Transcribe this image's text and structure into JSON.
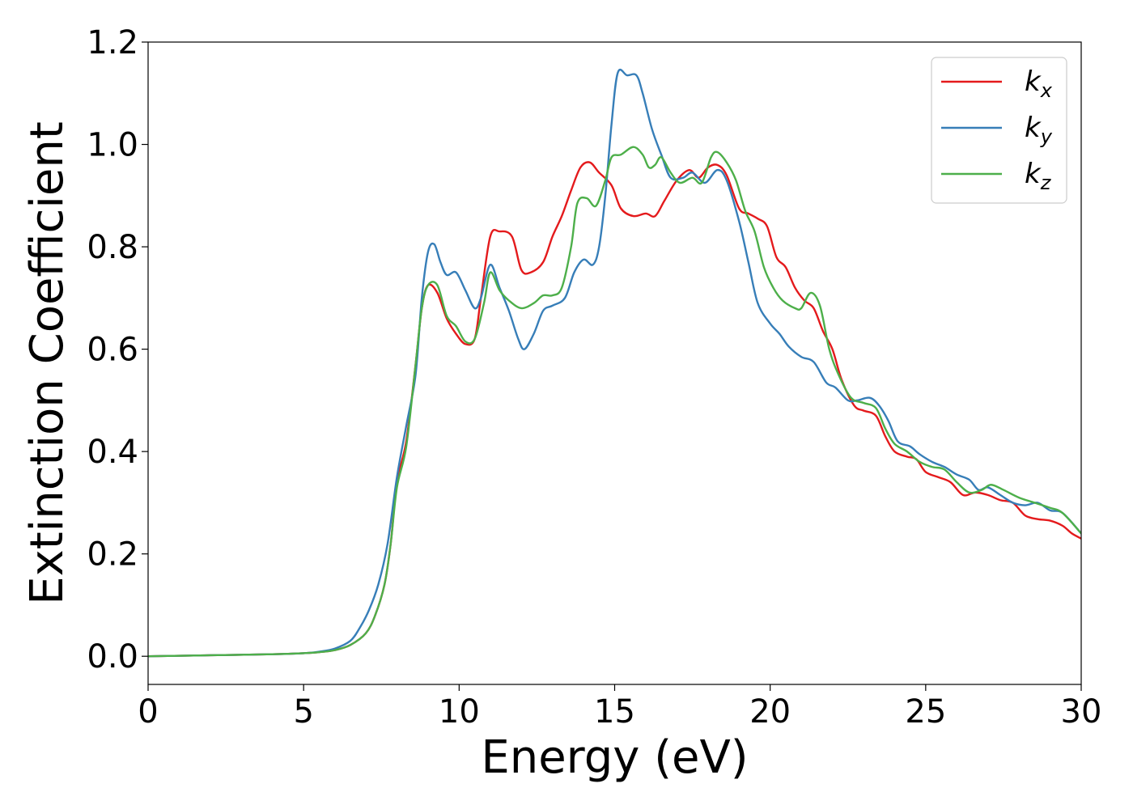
{
  "chart_data": {
    "type": "line",
    "xlabel": "Energy (eV)",
    "ylabel": "Extinction Coefficient",
    "xlim": [
      0,
      30
    ],
    "ylim": [
      -0.055,
      1.2
    ],
    "xticks": [
      0,
      5,
      10,
      15,
      20,
      25,
      30
    ],
    "xtick_labels": [
      "0",
      "5",
      "10",
      "15",
      "20",
      "25",
      "30"
    ],
    "yticks": [
      0.0,
      0.2,
      0.4,
      0.6,
      0.8,
      1.0,
      1.2
    ],
    "ytick_labels": [
      "0.0",
      "0.2",
      "0.4",
      "0.6",
      "0.8",
      "1.0",
      "1.2"
    ],
    "grid": false,
    "legend_position": "top-right",
    "series": [
      {
        "name": "k",
        "subscript": "x",
        "color": "#e41a1c",
        "points": [
          [
            0,
            0
          ],
          [
            2,
            0.002
          ],
          [
            4,
            0.004
          ],
          [
            5,
            0.006
          ],
          [
            5.5,
            0.008
          ],
          [
            6,
            0.012
          ],
          [
            6.5,
            0.022
          ],
          [
            7,
            0.045
          ],
          [
            7.3,
            0.08
          ],
          [
            7.6,
            0.14
          ],
          [
            7.8,
            0.22
          ],
          [
            8,
            0.34
          ],
          [
            8.3,
            0.42
          ],
          [
            8.6,
            0.57
          ],
          [
            8.8,
            0.68
          ],
          [
            9,
            0.725
          ],
          [
            9.3,
            0.71
          ],
          [
            9.6,
            0.66
          ],
          [
            9.9,
            0.63
          ],
          [
            10.2,
            0.61
          ],
          [
            10.5,
            0.62
          ],
          [
            10.7,
            0.7
          ],
          [
            11,
            0.82
          ],
          [
            11.3,
            0.83
          ],
          [
            11.7,
            0.82
          ],
          [
            12,
            0.755
          ],
          [
            12.3,
            0.75
          ],
          [
            12.7,
            0.77
          ],
          [
            13,
            0.82
          ],
          [
            13.3,
            0.86
          ],
          [
            13.6,
            0.91
          ],
          [
            13.9,
            0.955
          ],
          [
            14.2,
            0.965
          ],
          [
            14.5,
            0.945
          ],
          [
            14.9,
            0.92
          ],
          [
            15.2,
            0.875
          ],
          [
            15.6,
            0.86
          ],
          [
            16,
            0.865
          ],
          [
            16.3,
            0.86
          ],
          [
            16.6,
            0.89
          ],
          [
            17,
            0.93
          ],
          [
            17.4,
            0.95
          ],
          [
            17.7,
            0.935
          ],
          [
            18,
            0.955
          ],
          [
            18.3,
            0.96
          ],
          [
            18.6,
            0.94
          ],
          [
            19,
            0.875
          ],
          [
            19.3,
            0.865
          ],
          [
            19.6,
            0.855
          ],
          [
            19.9,
            0.84
          ],
          [
            20.2,
            0.78
          ],
          [
            20.5,
            0.76
          ],
          [
            20.8,
            0.72
          ],
          [
            21.1,
            0.695
          ],
          [
            21.4,
            0.68
          ],
          [
            21.7,
            0.635
          ],
          [
            22,
            0.6
          ],
          [
            22.3,
            0.54
          ],
          [
            22.7,
            0.49
          ],
          [
            23,
            0.48
          ],
          [
            23.4,
            0.47
          ],
          [
            23.7,
            0.43
          ],
          [
            24,
            0.4
          ],
          [
            24.4,
            0.39
          ],
          [
            24.7,
            0.385
          ],
          [
            25,
            0.36
          ],
          [
            25.4,
            0.35
          ],
          [
            25.8,
            0.34
          ],
          [
            26.2,
            0.315
          ],
          [
            26.6,
            0.32
          ],
          [
            27,
            0.315
          ],
          [
            27.4,
            0.305
          ],
          [
            27.8,
            0.3
          ],
          [
            28.2,
            0.275
          ],
          [
            28.6,
            0.268
          ],
          [
            29,
            0.265
          ],
          [
            29.4,
            0.255
          ],
          [
            29.7,
            0.24
          ],
          [
            30,
            0.23
          ]
        ]
      },
      {
        "name": "k",
        "subscript": "y",
        "color": "#377eb8",
        "points": [
          [
            0,
            0
          ],
          [
            2,
            0.002
          ],
          [
            4,
            0.004
          ],
          [
            5,
            0.006
          ],
          [
            5.5,
            0.009
          ],
          [
            6,
            0.015
          ],
          [
            6.5,
            0.03
          ],
          [
            6.8,
            0.055
          ],
          [
            7.1,
            0.09
          ],
          [
            7.4,
            0.14
          ],
          [
            7.7,
            0.22
          ],
          [
            8,
            0.35
          ],
          [
            8.3,
            0.45
          ],
          [
            8.6,
            0.55
          ],
          [
            8.8,
            0.7
          ],
          [
            9,
            0.79
          ],
          [
            9.2,
            0.805
          ],
          [
            9.4,
            0.77
          ],
          [
            9.6,
            0.745
          ],
          [
            9.9,
            0.75
          ],
          [
            10.2,
            0.715
          ],
          [
            10.5,
            0.68
          ],
          [
            10.7,
            0.7
          ],
          [
            11,
            0.765
          ],
          [
            11.3,
            0.72
          ],
          [
            11.6,
            0.675
          ],
          [
            11.9,
            0.62
          ],
          [
            12.1,
            0.6
          ],
          [
            12.4,
            0.63
          ],
          [
            12.7,
            0.675
          ],
          [
            13,
            0.685
          ],
          [
            13.4,
            0.7
          ],
          [
            13.7,
            0.75
          ],
          [
            14,
            0.775
          ],
          [
            14.3,
            0.765
          ],
          [
            14.5,
            0.8
          ],
          [
            14.7,
            0.9
          ],
          [
            14.9,
            1.04
          ],
          [
            15.1,
            1.14
          ],
          [
            15.4,
            1.135
          ],
          [
            15.7,
            1.135
          ],
          [
            15.9,
            1.1
          ],
          [
            16.2,
            1.03
          ],
          [
            16.5,
            0.98
          ],
          [
            16.8,
            0.935
          ],
          [
            17.2,
            0.935
          ],
          [
            17.5,
            0.945
          ],
          [
            17.9,
            0.925
          ],
          [
            18.3,
            0.95
          ],
          [
            18.6,
            0.93
          ],
          [
            19,
            0.85
          ],
          [
            19.3,
            0.77
          ],
          [
            19.6,
            0.69
          ],
          [
            20,
            0.65
          ],
          [
            20.3,
            0.63
          ],
          [
            20.6,
            0.605
          ],
          [
            21,
            0.585
          ],
          [
            21.4,
            0.575
          ],
          [
            21.8,
            0.535
          ],
          [
            22.1,
            0.525
          ],
          [
            22.5,
            0.5
          ],
          [
            22.8,
            0.5
          ],
          [
            23.2,
            0.505
          ],
          [
            23.5,
            0.49
          ],
          [
            23.8,
            0.46
          ],
          [
            24.1,
            0.42
          ],
          [
            24.5,
            0.41
          ],
          [
            24.8,
            0.395
          ],
          [
            25.2,
            0.38
          ],
          [
            25.6,
            0.37
          ],
          [
            26,
            0.355
          ],
          [
            26.4,
            0.345
          ],
          [
            26.7,
            0.325
          ],
          [
            27,
            0.33
          ],
          [
            27.4,
            0.315
          ],
          [
            27.8,
            0.3
          ],
          [
            28.2,
            0.295
          ],
          [
            28.6,
            0.3
          ],
          [
            29,
            0.285
          ],
          [
            29.4,
            0.28
          ],
          [
            30,
            0.24
          ]
        ]
      },
      {
        "name": "k",
        "subscript": "z",
        "color": "#4daf4a",
        "points": [
          [
            0,
            0
          ],
          [
            2,
            0.002
          ],
          [
            4,
            0.004
          ],
          [
            5,
            0.006
          ],
          [
            5.5,
            0.008
          ],
          [
            6,
            0.012
          ],
          [
            6.5,
            0.022
          ],
          [
            7,
            0.045
          ],
          [
            7.3,
            0.08
          ],
          [
            7.6,
            0.14
          ],
          [
            7.8,
            0.22
          ],
          [
            8,
            0.33
          ],
          [
            8.3,
            0.41
          ],
          [
            8.6,
            0.57
          ],
          [
            8.8,
            0.68
          ],
          [
            9,
            0.725
          ],
          [
            9.3,
            0.725
          ],
          [
            9.6,
            0.665
          ],
          [
            9.9,
            0.645
          ],
          [
            10.2,
            0.615
          ],
          [
            10.5,
            0.62
          ],
          [
            10.8,
            0.69
          ],
          [
            11,
            0.75
          ],
          [
            11.3,
            0.715
          ],
          [
            11.6,
            0.695
          ],
          [
            12,
            0.68
          ],
          [
            12.4,
            0.69
          ],
          [
            12.7,
            0.705
          ],
          [
            13,
            0.705
          ],
          [
            13.3,
            0.72
          ],
          [
            13.6,
            0.8
          ],
          [
            13.8,
            0.885
          ],
          [
            14.1,
            0.895
          ],
          [
            14.4,
            0.88
          ],
          [
            14.7,
            0.93
          ],
          [
            14.9,
            0.975
          ],
          [
            15.2,
            0.98
          ],
          [
            15.6,
            0.995
          ],
          [
            15.9,
            0.98
          ],
          [
            16.1,
            0.955
          ],
          [
            16.3,
            0.96
          ],
          [
            16.5,
            0.975
          ],
          [
            16.8,
            0.945
          ],
          [
            17.1,
            0.925
          ],
          [
            17.5,
            0.935
          ],
          [
            17.8,
            0.925
          ],
          [
            18.1,
            0.975
          ],
          [
            18.3,
            0.985
          ],
          [
            18.6,
            0.965
          ],
          [
            18.9,
            0.93
          ],
          [
            19.2,
            0.87
          ],
          [
            19.5,
            0.83
          ],
          [
            19.8,
            0.76
          ],
          [
            20.1,
            0.72
          ],
          [
            20.4,
            0.695
          ],
          [
            20.8,
            0.68
          ],
          [
            21,
            0.68
          ],
          [
            21.3,
            0.71
          ],
          [
            21.6,
            0.685
          ],
          [
            21.9,
            0.6
          ],
          [
            22.2,
            0.55
          ],
          [
            22.6,
            0.505
          ],
          [
            23,
            0.495
          ],
          [
            23.4,
            0.485
          ],
          [
            23.7,
            0.445
          ],
          [
            24,
            0.415
          ],
          [
            24.4,
            0.4
          ],
          [
            24.8,
            0.38
          ],
          [
            25.2,
            0.37
          ],
          [
            25.6,
            0.365
          ],
          [
            26,
            0.34
          ],
          [
            26.4,
            0.32
          ],
          [
            26.8,
            0.325
          ],
          [
            27.1,
            0.335
          ],
          [
            27.5,
            0.325
          ],
          [
            28,
            0.31
          ],
          [
            28.5,
            0.3
          ],
          [
            29,
            0.29
          ],
          [
            29.4,
            0.28
          ],
          [
            30,
            0.24
          ]
        ]
      }
    ]
  }
}
